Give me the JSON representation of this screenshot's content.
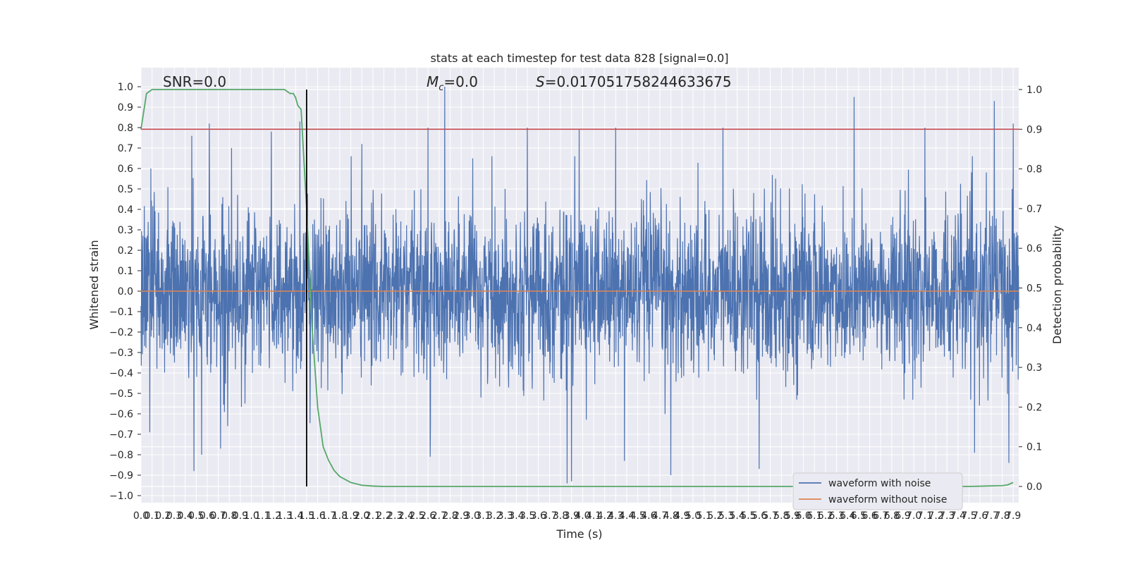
{
  "chart_data": {
    "type": "line",
    "title": "stats at each timestep for test data 828 [signal=0.0]",
    "xlabel": "Time (s)",
    "ylabel": "Whitened strain",
    "ylabel_right": "Detection probability",
    "xlim": [
      0.0,
      7.95
    ],
    "ylim": [
      -1.05,
      1.05
    ],
    "ylim_right": [
      -0.02,
      1.02
    ],
    "x_ticks": [
      0.0,
      0.1,
      0.2,
      0.3,
      0.4,
      0.5,
      0.6,
      0.7,
      0.8,
      0.9,
      1.0,
      1.1,
      1.2,
      1.3,
      1.4,
      1.5,
      1.6,
      1.7,
      1.8,
      1.9,
      2.0,
      2.1,
      2.2,
      2.3,
      2.4,
      2.5,
      2.6,
      2.7,
      2.8,
      2.9,
      3.0,
      3.1,
      3.2,
      3.3,
      3.4,
      3.5,
      3.6,
      3.7,
      3.8,
      3.9,
      4.0,
      4.1,
      4.2,
      4.3,
      4.4,
      4.5,
      4.6,
      4.7,
      4.8,
      4.9,
      5.0,
      5.1,
      5.2,
      5.3,
      5.4,
      5.5,
      5.6,
      5.7,
      5.8,
      5.9,
      6.0,
      6.1,
      6.2,
      6.3,
      6.4,
      6.5,
      6.6,
      6.7,
      6.8,
      6.9,
      7.0,
      7.1,
      7.2,
      7.3,
      7.4,
      7.5,
      7.6,
      7.7,
      7.8,
      7.9
    ],
    "y_ticks": [
      "1.0",
      "0.9",
      "0.8",
      "0.7",
      "0.6",
      "0.5",
      "0.4",
      "0.3",
      "0.2",
      "0.1",
      "0.0",
      "-0.1",
      "-0.2",
      "-0.3",
      "-0.4",
      "-0.5",
      "-0.6",
      "-0.7",
      "-0.8",
      "-0.9",
      "-1.0"
    ],
    "y_tick_values": [
      1.0,
      0.9,
      0.8,
      0.7,
      0.6,
      0.5,
      0.4,
      0.3,
      0.2,
      0.1,
      0.0,
      -0.1,
      -0.2,
      -0.3,
      -0.4,
      -0.5,
      -0.6,
      -0.7,
      -0.8,
      -0.9,
      -1.0
    ],
    "y_right_ticks": [
      "1.0",
      "0.9",
      "0.8",
      "0.7",
      "0.6",
      "0.5",
      "0.4",
      "0.3",
      "0.2",
      "0.1",
      "0.0"
    ],
    "y_right_tick_values": [
      1.0,
      0.9,
      0.8,
      0.7,
      0.6,
      0.5,
      0.4,
      0.3,
      0.2,
      0.1,
      0.0
    ],
    "grid": true,
    "legend_position": "lower-right",
    "series": [
      {
        "name": "waveform with noise",
        "color": "#4c72b0",
        "description_values": {
          "typical_positive_peak": 0.45,
          "typical_negative_peak": -0.45,
          "max": 1.0,
          "min": -0.94
        },
        "peaks": [
          {
            "x": 0.09,
            "y": 0.6
          },
          {
            "x": 0.46,
            "y": 0.76
          },
          {
            "x": 0.62,
            "y": 0.82
          },
          {
            "x": 0.82,
            "y": 0.7
          },
          {
            "x": 1.18,
            "y": 0.78
          },
          {
            "x": 1.44,
            "y": 0.83
          },
          {
            "x": 2.0,
            "y": 0.72
          },
          {
            "x": 2.6,
            "y": 0.8
          },
          {
            "x": 2.75,
            "y": 1.0
          },
          {
            "x": 3.5,
            "y": 0.8
          },
          {
            "x": 3.97,
            "y": 0.79
          },
          {
            "x": 4.3,
            "y": 0.8
          },
          {
            "x": 5.27,
            "y": 0.8
          },
          {
            "x": 6.46,
            "y": 0.95
          },
          {
            "x": 7.1,
            "y": 0.8
          },
          {
            "x": 7.73,
            "y": 0.93
          },
          {
            "x": 7.9,
            "y": 0.82
          }
        ],
        "troughs": [
          {
            "x": 0.08,
            "y": -0.69
          },
          {
            "x": 0.48,
            "y": -0.88
          },
          {
            "x": 0.55,
            "y": -0.8
          },
          {
            "x": 0.72,
            "y": -0.77
          },
          {
            "x": 2.62,
            "y": -0.81
          },
          {
            "x": 3.86,
            "y": -0.94
          },
          {
            "x": 3.9,
            "y": -0.93
          },
          {
            "x": 4.38,
            "y": -0.83
          },
          {
            "x": 4.8,
            "y": -0.9
          },
          {
            "x": 5.6,
            "y": -0.87
          },
          {
            "x": 7.55,
            "y": -0.79
          },
          {
            "x": 7.86,
            "y": -0.84
          }
        ]
      },
      {
        "name": "waveform without noise",
        "color": "#dd8452",
        "x": [
          0.0,
          7.95
        ],
        "values": [
          0.0,
          0.0
        ]
      },
      {
        "name": "",
        "color": "#55a868",
        "axis": "right",
        "x": [
          0.0,
          0.05,
          0.1,
          0.2,
          0.4,
          0.8,
          1.2,
          1.3,
          1.35,
          1.38,
          1.4,
          1.42,
          1.45,
          1.5,
          1.55,
          1.6,
          1.65,
          1.7,
          1.75,
          1.8,
          1.9,
          2.0,
          2.1,
          2.2,
          3.0,
          5.0,
          7.5,
          7.8,
          7.85,
          7.9
        ],
        "values": [
          0.9,
          0.99,
          1.0,
          1.0,
          1.0,
          1.0,
          1.0,
          1.0,
          0.99,
          0.99,
          0.98,
          0.96,
          0.95,
          0.7,
          0.4,
          0.2,
          0.1,
          0.065,
          0.04,
          0.025,
          0.01,
          0.003,
          0.001,
          0.0,
          0.0,
          0.0,
          0.0,
          0.002,
          0.004,
          0.01
        ]
      }
    ],
    "threshold": {
      "color": "#c44e52",
      "axis": "right",
      "value": 0.9
    },
    "marker_line": {
      "color": "#000000",
      "x": 1.5
    },
    "annotations": {
      "snr": "SNR=0.0",
      "mc_symbol": "M",
      "mc_subscript": "c",
      "mc_value": "=0.0",
      "s_symbol": "S",
      "s_value": "=0.017051758244633675"
    }
  }
}
